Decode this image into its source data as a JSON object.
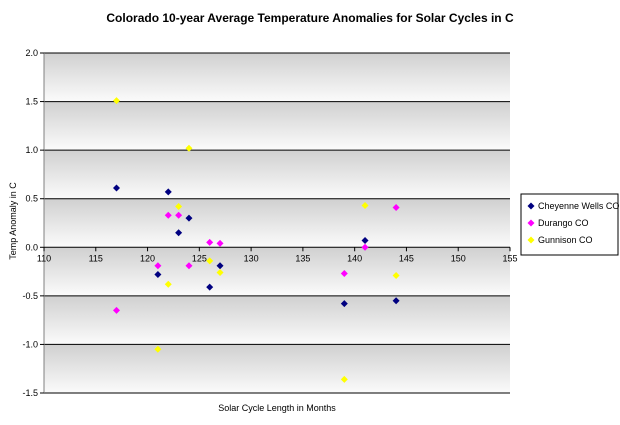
{
  "chart_data": {
    "type": "scatter",
    "title": "Colorado 10-year Average Temperature Anomalies for Solar Cycles in C",
    "xlabel": "Solar Cycle Length in Months",
    "ylabel": "Temp Anomaly in C",
    "xlim": [
      110,
      155
    ],
    "ylim": [
      -1.5,
      2.0
    ],
    "x_ticks": [
      "110",
      "115",
      "120",
      "125",
      "130",
      "135",
      "140",
      "145",
      "150",
      "155"
    ],
    "y_ticks": [
      "2.0",
      "1.5",
      "1.0",
      "0.5",
      "0.0",
      "-0.5",
      "-1.0",
      "-1.5"
    ],
    "grid": "horizontal",
    "background": "banded gray gradient",
    "legend_position": "right",
    "series": [
      {
        "name": "Cheyenne Wells CO",
        "color": "#000080",
        "marker": "diamond",
        "points": [
          {
            "x": 117,
            "y": 0.61
          },
          {
            "x": 121,
            "y": -0.28
          },
          {
            "x": 122,
            "y": 0.57
          },
          {
            "x": 123,
            "y": 0.15
          },
          {
            "x": 124,
            "y": 0.3
          },
          {
            "x": 126,
            "y": -0.41
          },
          {
            "x": 127,
            "y": -0.19
          },
          {
            "x": 139,
            "y": -0.58
          },
          {
            "x": 141,
            "y": 0.07
          },
          {
            "x": 144,
            "y": -0.55
          }
        ]
      },
      {
        "name": "Durango CO",
        "color": "#ff00ff",
        "marker": "diamond",
        "points": [
          {
            "x": 117,
            "y": -0.65
          },
          {
            "x": 121,
            "y": -0.19
          },
          {
            "x": 122,
            "y": 0.33
          },
          {
            "x": 123,
            "y": 0.33
          },
          {
            "x": 124,
            "y": -0.19
          },
          {
            "x": 126,
            "y": 0.05
          },
          {
            "x": 127,
            "y": 0.04
          },
          {
            "x": 139,
            "y": -0.27
          },
          {
            "x": 141,
            "y": 0.0
          },
          {
            "x": 144,
            "y": 0.41
          }
        ]
      },
      {
        "name": "Gunnison CO",
        "color": "#ffff00",
        "marker": "diamond",
        "points": [
          {
            "x": 117,
            "y": 1.51
          },
          {
            "x": 121,
            "y": -1.05
          },
          {
            "x": 122,
            "y": -0.38
          },
          {
            "x": 123,
            "y": 0.42
          },
          {
            "x": 124,
            "y": 1.02
          },
          {
            "x": 126,
            "y": -0.14
          },
          {
            "x": 127,
            "y": -0.26
          },
          {
            "x": 139,
            "y": -1.36
          },
          {
            "x": 141,
            "y": 0.43
          },
          {
            "x": 144,
            "y": -0.29
          }
        ]
      }
    ]
  }
}
